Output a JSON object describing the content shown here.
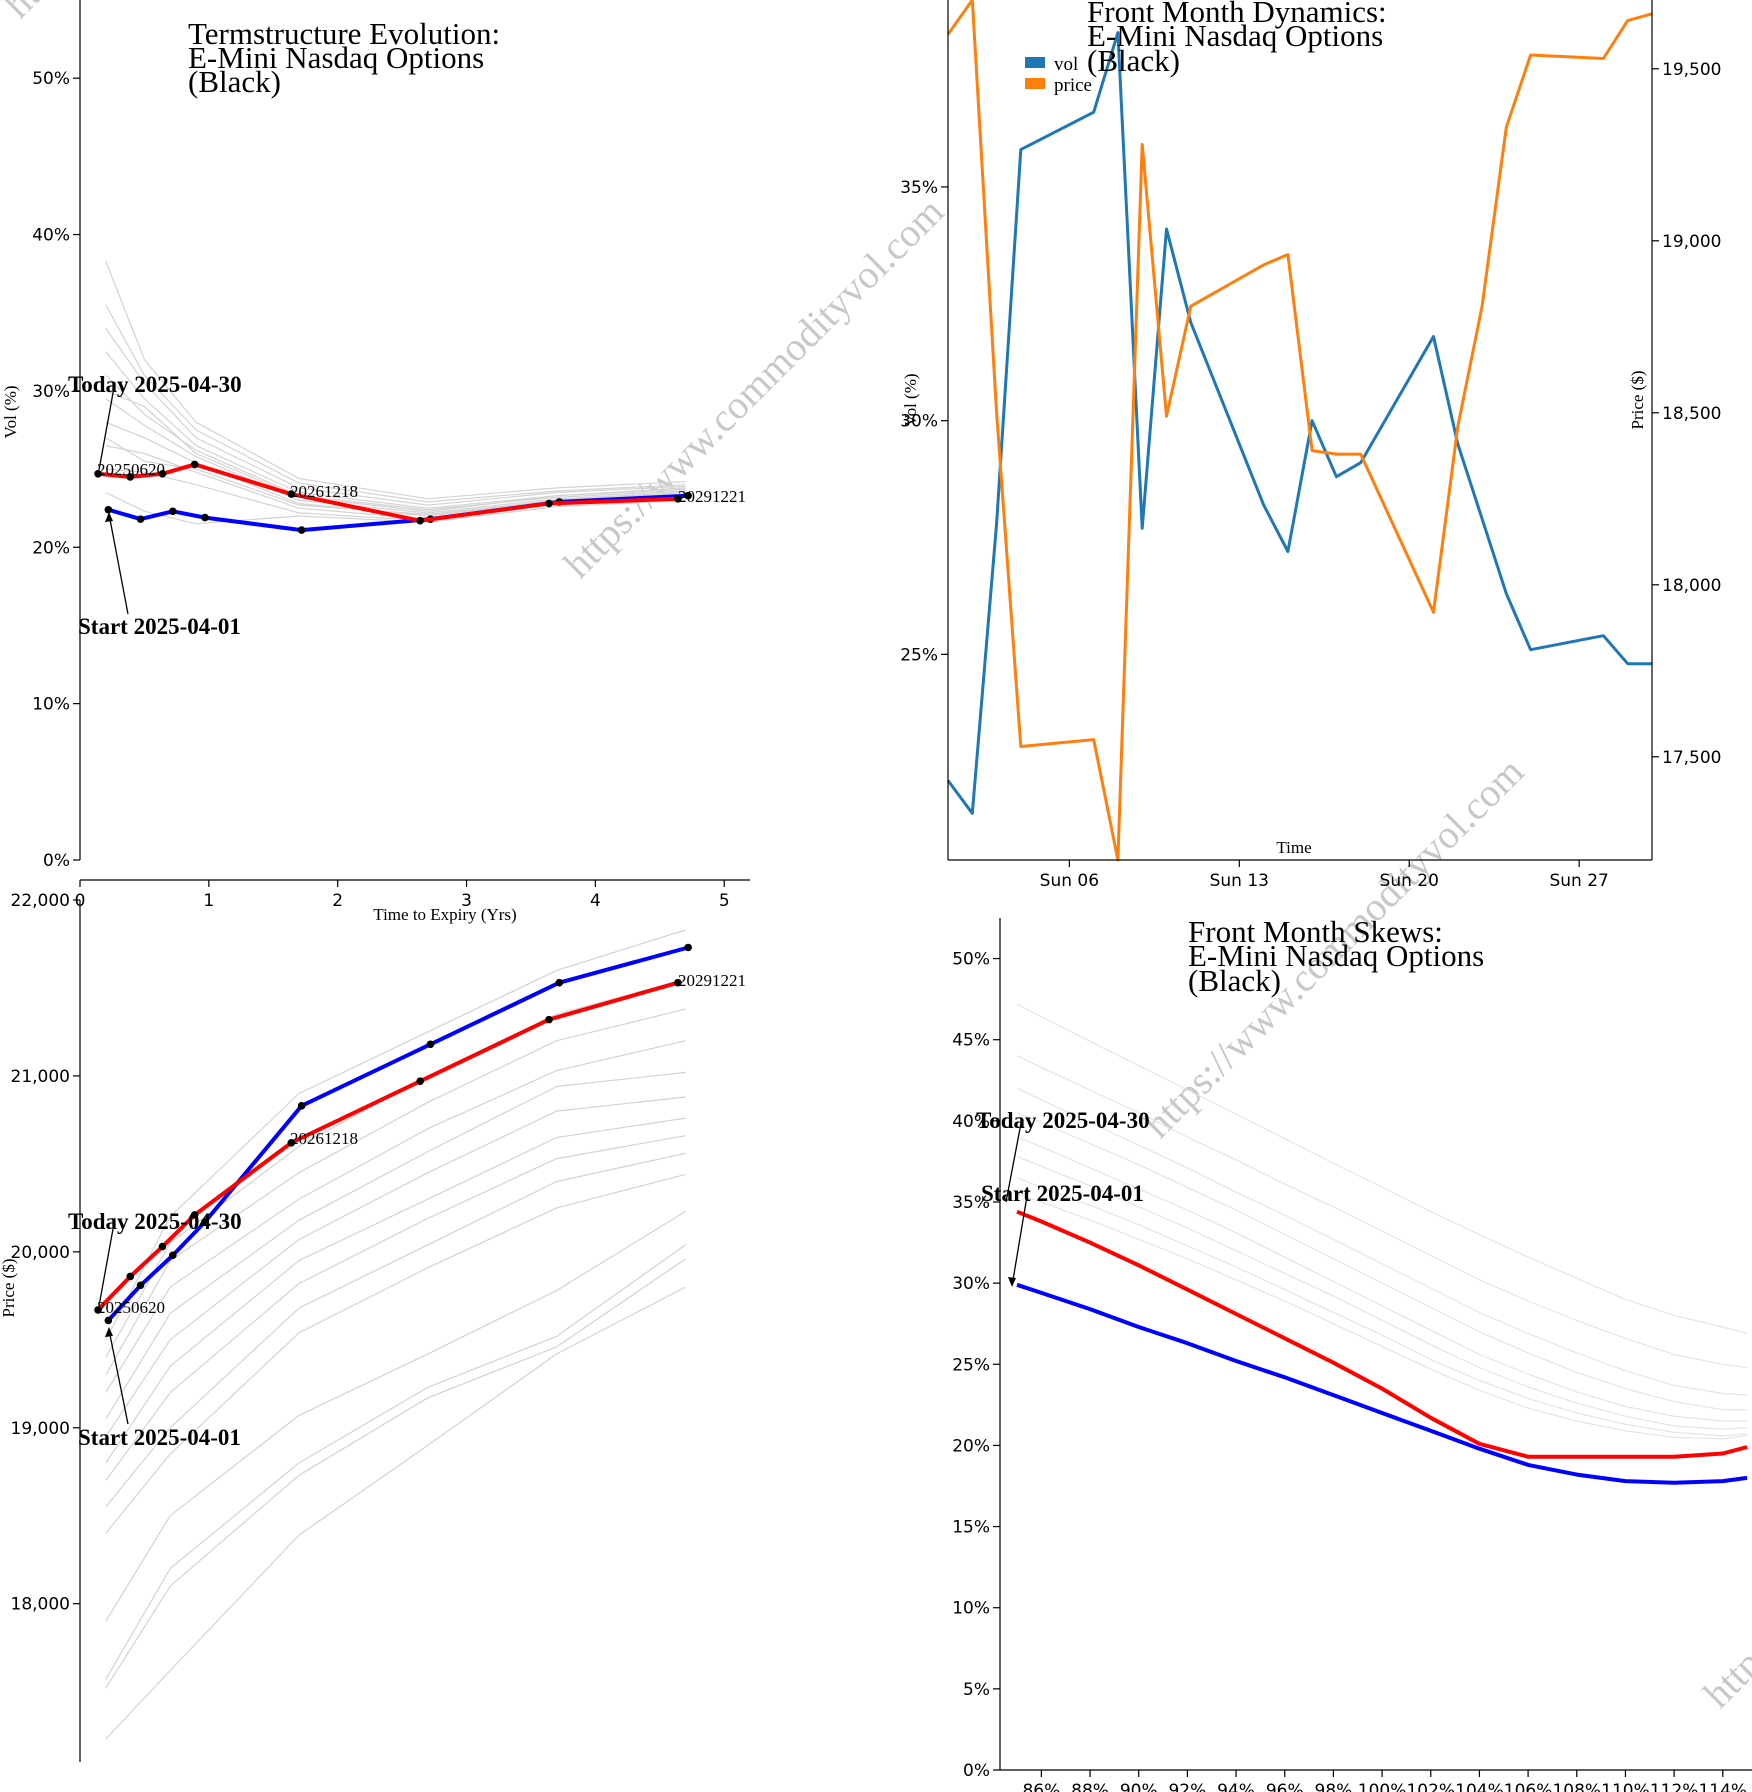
{
  "watermark": {
    "text": "https://www.commodityvol.com"
  },
  "colors": {
    "start": "#0000ff",
    "today": "#ff0000",
    "history": "#d3d3d3",
    "vol": "#1f77b4",
    "price": "#ff7f0e"
  },
  "chart_data": [
    {
      "id": "termstructure-vol",
      "type": "line",
      "title": [
        "Termstructure Evolution:",
        "E-Mini Nasdaq Options",
        "(Black)"
      ],
      "xlabel": "Time to Expiry (Yrs)",
      "ylabel": "Vol (%)",
      "xlim": [
        0,
        5.2
      ],
      "ylim": [
        0,
        55
      ],
      "xticks": [
        "0",
        "1",
        "2",
        "3",
        "4",
        "5"
      ],
      "yticks": [
        "0%",
        "10%",
        "20%",
        "30%",
        "40%",
        "50%"
      ],
      "expiry_labels": [
        "20250620",
        "20261218",
        "20291221"
      ],
      "annotations": {
        "today": "Today 2025-04-30",
        "start": "Start 2025-04-01"
      },
      "series": [
        {
          "name": "Start 2025-04-01",
          "color": "#0000ff",
          "x": [
            0.22,
            0.47,
            0.72,
            0.97,
            1.72,
            2.72,
            3.72,
            4.72
          ],
          "y": [
            22.4,
            21.8,
            22.3,
            21.9,
            21.1,
            21.8,
            22.9,
            23.3
          ]
        },
        {
          "name": "Today 2025-04-30",
          "color": "#ff0000",
          "x": [
            0.14,
            0.39,
            0.64,
            0.89,
            1.64,
            2.64,
            3.64,
            4.64
          ],
          "y": [
            24.7,
            24.5,
            24.7,
            25.3,
            23.4,
            21.7,
            22.8,
            23.1
          ]
        }
      ],
      "history": [
        {
          "x": [
            0.2,
            0.5,
            0.9,
            1.7,
            2.7,
            3.7,
            4.7
          ],
          "y": [
            38.3,
            32.0,
            28.0,
            24.4,
            23.1,
            23.8,
            24.2
          ]
        },
        {
          "x": [
            0.2,
            0.5,
            0.9,
            1.7,
            2.7,
            3.7,
            4.7
          ],
          "y": [
            35.5,
            31.0,
            27.5,
            24.1,
            22.9,
            23.6,
            24.0
          ]
        },
        {
          "x": [
            0.2,
            0.5,
            0.9,
            1.7,
            2.7,
            3.7,
            4.7
          ],
          "y": [
            34.0,
            30.5,
            27.0,
            23.8,
            22.7,
            23.5,
            23.9
          ]
        },
        {
          "x": [
            0.2,
            0.5,
            0.9,
            1.7,
            2.7,
            3.7,
            4.7
          ],
          "y": [
            32.5,
            29.5,
            26.5,
            23.5,
            22.5,
            23.3,
            23.8
          ]
        },
        {
          "x": [
            0.2,
            0.5,
            0.9,
            1.7,
            2.7,
            3.7,
            4.7
          ],
          "y": [
            31.0,
            28.5,
            26.2,
            23.3,
            22.4,
            23.2,
            23.6
          ]
        },
        {
          "x": [
            0.2,
            0.5,
            0.9,
            1.7,
            2.7,
            3.7,
            4.7
          ],
          "y": [
            29.5,
            27.8,
            25.8,
            23.0,
            22.2,
            23.1,
            23.5
          ]
        },
        {
          "x": [
            0.2,
            0.5,
            0.9,
            1.7,
            2.7,
            3.7,
            4.7
          ],
          "y": [
            28.0,
            27.0,
            25.4,
            22.8,
            22.0,
            23.0,
            23.4
          ]
        },
        {
          "x": [
            0.2,
            0.5,
            0.9,
            1.7,
            2.7,
            3.7,
            4.7
          ],
          "y": [
            26.5,
            26.0,
            24.8,
            22.5,
            21.8,
            22.9,
            23.3
          ]
        },
        {
          "x": [
            0.2,
            0.5,
            0.9,
            1.7,
            2.7,
            3.7,
            4.7
          ],
          "y": [
            25.0,
            24.8,
            24.0,
            22.2,
            21.7,
            22.8,
            23.2
          ]
        },
        {
          "x": [
            0.2,
            0.5,
            0.9,
            1.7,
            2.7,
            3.7,
            4.7
          ],
          "y": [
            23.5,
            22.3,
            21.5,
            22.0,
            21.6,
            22.6,
            23.0
          ]
        },
        {
          "x": [
            0.2,
            0.5,
            0.9,
            1.7,
            2.7,
            3.7,
            4.7
          ],
          "y": [
            27.0,
            25.5,
            25.0,
            22.7,
            22.1,
            23.0,
            23.5
          ]
        },
        {
          "x": [
            0.2,
            0.5,
            0.9,
            1.7,
            2.7,
            3.7,
            4.7
          ],
          "y": [
            30.0,
            29.0,
            26.0,
            23.2,
            22.3,
            23.3,
            23.7
          ]
        }
      ]
    },
    {
      "id": "front-month-dynamics",
      "type": "line",
      "title": [
        "Front Month Dynamics:",
        "E-Mini Nasdaq Options",
        "(Black)"
      ],
      "xlabel": "Time",
      "ylabel_left": "Vol (%)",
      "ylabel_right": "Price ($)",
      "xticks": [
        "Sun 06",
        "Sun 13",
        "Sun 20",
        "Sun 27"
      ],
      "xtick_days": [
        6,
        13,
        20,
        27
      ],
      "xlim": [
        1,
        30
      ],
      "ylim_left": [
        20.6,
        39
      ],
      "ylim_right": [
        17200,
        19700
      ],
      "yticks_left": [
        "25%",
        "30%",
        "35%"
      ],
      "yticks_right": [
        "17,500",
        "18,000",
        "18,500",
        "19,000",
        "19,500"
      ],
      "legend": [
        "vol",
        "price"
      ],
      "legend_position": "top-left",
      "days": [
        1,
        2,
        3,
        4,
        7,
        8,
        9,
        10,
        11,
        14,
        15,
        16,
        17,
        18,
        21,
        22,
        23,
        24,
        25,
        28,
        29,
        30
      ],
      "series": [
        {
          "name": "vol",
          "color": "#1f77b4",
          "axis": "left",
          "values": [
            22.3,
            21.6,
            27.8,
            35.8,
            36.6,
            38.3,
            27.7,
            34.1,
            32.1,
            28.2,
            27.2,
            30.0,
            28.8,
            29.1,
            31.8,
            29.5,
            27.9,
            26.3,
            25.1,
            25.4,
            24.8,
            24.8
          ]
        },
        {
          "name": "price",
          "color": "#ff7f0e",
          "axis": "right",
          "values": [
            19600,
            19700,
            18500,
            17530,
            17550,
            17200,
            19280,
            18490,
            18810,
            18930,
            18960,
            18390,
            18380,
            18380,
            17920,
            18460,
            18810,
            19330,
            19540,
            19530,
            19640,
            19660
          ]
        }
      ]
    },
    {
      "id": "termstructure-price",
      "type": "line",
      "ylabel": "Price ($)",
      "xlim": [
        0,
        5.2
      ],
      "ylim": [
        17100,
        22000
      ],
      "yticks": [
        "18,000",
        "19,000",
        "20,000",
        "21,000",
        "22,000"
      ],
      "expiry_labels": [
        "20250620",
        "20261218",
        "20291221"
      ],
      "annotations": {
        "today": "Today 2025-04-30",
        "start": "Start 2025-04-01"
      },
      "series": [
        {
          "name": "Start 2025-04-01",
          "color": "#0000ff",
          "x": [
            0.22,
            0.47,
            0.72,
            0.97,
            1.72,
            2.72,
            3.72,
            4.72
          ],
          "y": [
            19610,
            19810,
            19980,
            20170,
            20830,
            21180,
            21530,
            21730
          ]
        },
        {
          "name": "Today 2025-04-30",
          "color": "#ff0000",
          "x": [
            0.14,
            0.39,
            0.64,
            0.89,
            1.64,
            2.64,
            3.64,
            4.64
          ],
          "y": [
            19670,
            19860,
            20030,
            20210,
            20620,
            20970,
            21320,
            21530
          ]
        }
      ],
      "history": [
        {
          "x": [
            0.2,
            0.7,
            1.7,
            2.7,
            3.7,
            4.7
          ],
          "y": [
            17230,
            17620,
            18390,
            18900,
            19420,
            19800
          ]
        },
        {
          "x": [
            0.2,
            0.7,
            1.7,
            2.7,
            3.7,
            4.7
          ],
          "y": [
            17520,
            18100,
            18730,
            19170,
            19460,
            19960
          ]
        },
        {
          "x": [
            0.2,
            0.7,
            1.7,
            2.7,
            3.7,
            4.7
          ],
          "y": [
            17570,
            18200,
            18800,
            19230,
            19520,
            20040
          ]
        },
        {
          "x": [
            0.2,
            0.7,
            1.7,
            2.7,
            3.7,
            4.7
          ],
          "y": [
            17900,
            18500,
            19070,
            19420,
            19780,
            20230
          ]
        },
        {
          "x": [
            0.2,
            0.7,
            1.7,
            2.7,
            3.7,
            4.7
          ],
          "y": [
            18400,
            18850,
            19540,
            19910,
            20250,
            20440
          ]
        },
        {
          "x": [
            0.2,
            0.7,
            1.7,
            2.7,
            3.7,
            4.7
          ],
          "y": [
            18550,
            19000,
            19680,
            20040,
            20400,
            20560
          ]
        },
        {
          "x": [
            0.2,
            0.7,
            1.7,
            2.7,
            3.7,
            4.7
          ],
          "y": [
            18700,
            19200,
            19820,
            20190,
            20530,
            20660
          ]
        },
        {
          "x": [
            0.2,
            0.7,
            1.7,
            2.7,
            3.7,
            4.7
          ],
          "y": [
            18800,
            19350,
            19950,
            20300,
            20650,
            20760
          ]
        },
        {
          "x": [
            0.2,
            0.7,
            1.7,
            2.7,
            3.7,
            4.7
          ],
          "y": [
            18950,
            19500,
            20070,
            20450,
            20800,
            20880
          ]
        },
        {
          "x": [
            0.2,
            0.7,
            1.7,
            2.7,
            3.7,
            4.7
          ],
          "y": [
            19050,
            19650,
            20180,
            20570,
            20940,
            21020
          ]
        },
        {
          "x": [
            0.2,
            0.7,
            1.7,
            2.7,
            3.7,
            4.7
          ],
          "y": [
            19200,
            19800,
            20300,
            20700,
            21030,
            21200
          ]
        },
        {
          "x": [
            0.2,
            0.7,
            1.7,
            2.7,
            3.7,
            4.7
          ],
          "y": [
            19300,
            19950,
            20450,
            20850,
            21200,
            21380
          ]
        },
        {
          "x": [
            0.2,
            0.7,
            1.7,
            2.7,
            3.7,
            4.7
          ],
          "y": [
            19400,
            20050,
            20600,
            21000,
            21350,
            21550
          ]
        },
        {
          "x": [
            0.2,
            0.7,
            1.7,
            2.7,
            3.7,
            4.7
          ],
          "y": [
            19500,
            20200,
            20900,
            21250,
            21600,
            21830
          ]
        }
      ]
    },
    {
      "id": "front-month-skews",
      "type": "line",
      "title": [
        "Front Month Skews:",
        "E-Mini Nasdaq Options",
        "(Black)"
      ],
      "xlim": [
        84.3,
        115.2
      ],
      "ylim": [
        0,
        52.5
      ],
      "xticks": [
        "86%",
        "88%",
        "90%",
        "92%",
        "94%",
        "96%",
        "98%",
        "100%",
        "102%",
        "104%",
        "106%",
        "108%",
        "110%",
        "112%",
        "114%"
      ],
      "yticks": [
        "0%",
        "5%",
        "10%",
        "15%",
        "20%",
        "25%",
        "30%",
        "35%",
        "40%",
        "45%",
        "50%"
      ],
      "annotations": {
        "today": "Today 2025-04-30",
        "start": "Start 2025-04-01"
      },
      "x": [
        85,
        86,
        88,
        90,
        92,
        94,
        96,
        98,
        100,
        102,
        104,
        106,
        108,
        110,
        112,
        114,
        115
      ],
      "series": [
        {
          "name": "Start 2025-04-01",
          "color": "#0000ff",
          "values": [
            29.9,
            29.4,
            28.4,
            27.3,
            26.3,
            25.2,
            24.2,
            23.1,
            22.0,
            20.9,
            19.8,
            18.8,
            18.2,
            17.8,
            17.7,
            17.8,
            18.0
          ]
        },
        {
          "name": "Today 2025-04-30",
          "color": "#ff0000",
          "values": [
            34.4,
            33.8,
            32.5,
            31.1,
            29.6,
            28.1,
            26.6,
            25.1,
            23.5,
            21.7,
            20.1,
            19.3,
            19.3,
            19.3,
            19.3,
            19.5,
            19.9
          ]
        }
      ],
      "history": [
        [
          47.2,
          46.4,
          44.9,
          43.4,
          41.9,
          40.4,
          38.9,
          37.4,
          35.9,
          34.4,
          33.0,
          31.6,
          30.3,
          29.0,
          28.0,
          27.3,
          26.9
        ],
        [
          44.0,
          43.3,
          41.9,
          40.5,
          39.0,
          37.6,
          36.1,
          34.7,
          33.2,
          31.7,
          30.2,
          28.9,
          27.7,
          26.6,
          25.6,
          25.0,
          24.8
        ],
        [
          42.0,
          41.3,
          39.9,
          38.5,
          37.1,
          35.6,
          34.2,
          32.7,
          31.2,
          29.7,
          28.2,
          26.9,
          25.7,
          24.6,
          23.7,
          23.2,
          23.1
        ],
        [
          40.5,
          39.9,
          38.6,
          37.3,
          35.9,
          34.5,
          33.0,
          31.5,
          30.0,
          28.5,
          27.0,
          25.7,
          24.5,
          23.5,
          22.7,
          22.2,
          22.2
        ],
        [
          39.0,
          38.4,
          37.1,
          35.8,
          34.5,
          33.1,
          31.6,
          30.1,
          28.6,
          27.1,
          25.6,
          24.4,
          23.3,
          22.4,
          21.8,
          21.5,
          21.5
        ],
        [
          37.8,
          37.2,
          36.0,
          34.7,
          33.4,
          32.0,
          30.6,
          29.2,
          27.7,
          26.2,
          24.8,
          23.6,
          22.6,
          21.8,
          21.2,
          21.0,
          21.1
        ],
        [
          36.5,
          35.9,
          34.8,
          33.6,
          32.3,
          31.0,
          29.6,
          28.2,
          26.8,
          25.3,
          24.0,
          22.9,
          22.0,
          21.3,
          20.8,
          20.6,
          20.7
        ],
        [
          35.5,
          35.0,
          33.9,
          32.7,
          31.5,
          30.2,
          28.9,
          27.5,
          26.1,
          24.7,
          23.4,
          22.3,
          21.5,
          20.9,
          20.5,
          20.4,
          20.6
        ]
      ]
    }
  ]
}
